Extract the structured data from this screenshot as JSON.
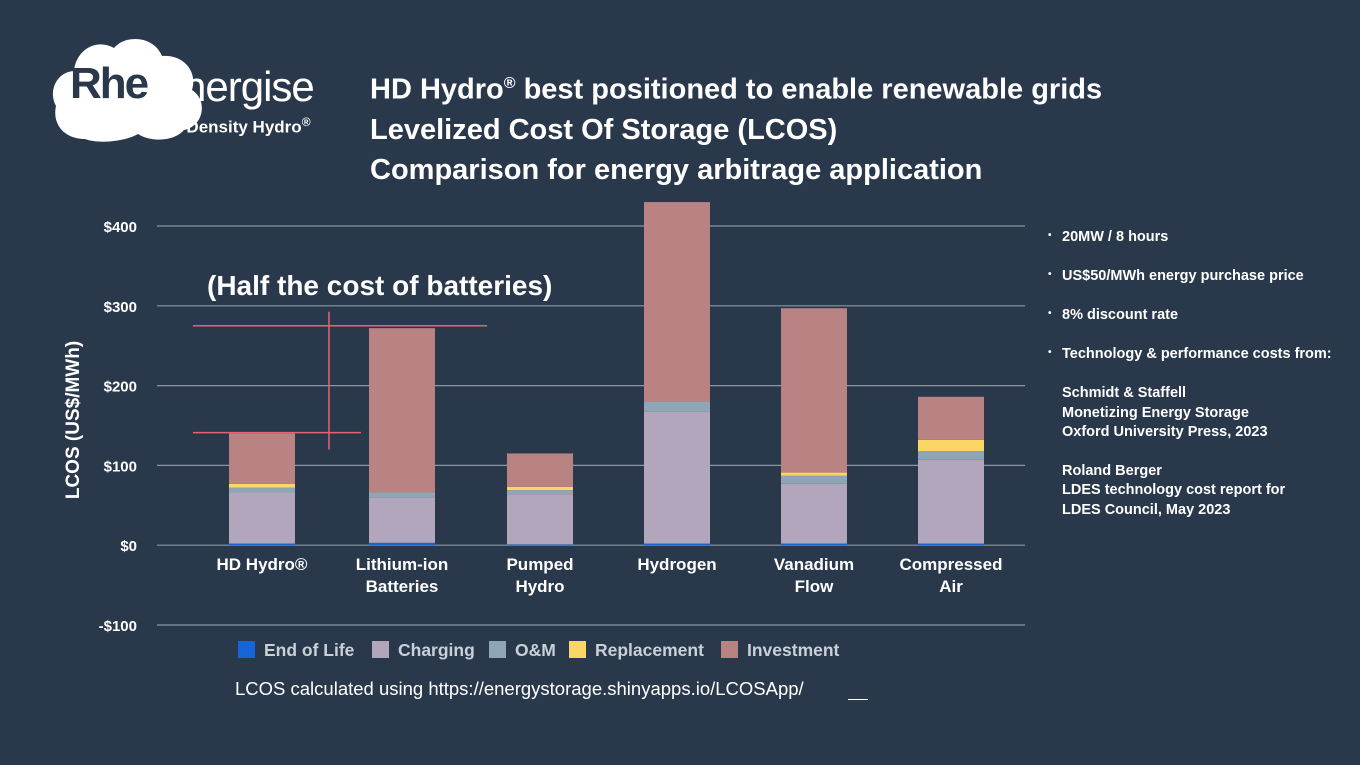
{
  "logo": {
    "brand_rhe": "Rhe",
    "brand_energise": "Energise",
    "tagline": "High-Density Hydro",
    "tagline_mark": "®"
  },
  "title": {
    "line1": "HD Hydro",
    "line1_mark": "®",
    "line1_rest": " best positioned to enable renewable grids",
    "line2": "Levelized Cost Of Storage  (LCOS)",
    "line3": "Comparison for energy arbitrage  application"
  },
  "notes": {
    "bullets": [
      "20MW / 8 hours",
      "US$50/MWh energy purchase price",
      "8% discount rate",
      "Technology & performance costs from:"
    ],
    "references": [
      [
        "Schmidt & Staffell",
        "Monetizing Energy Storage",
        "Oxford University Press, 2023"
      ],
      [
        "Roland Berger",
        "LDES technology cost report for",
        "LDES Council, May 2023"
      ]
    ]
  },
  "footer": {
    "text": "LCOS calculated using https://energystorage.shinyapps.io/LCOSApp/"
  },
  "colors": {
    "background": "#29394b",
    "end_of_life": "#1565d8",
    "charging": "#b2a6bd",
    "om": "#8fa6b6",
    "replacement": "#fbd666",
    "investment": "#b88382",
    "gridline": "#8c96a2",
    "annotation": "#e8636e"
  },
  "chart_data": {
    "type": "bar",
    "stacked": true,
    "title": "",
    "ylabel": "LCOS (US$/MWh)",
    "xlabel": "",
    "ylim": [
      -100,
      400
    ],
    "ytick_values": [
      -100,
      0,
      100,
      200,
      300,
      400
    ],
    "ytick_labels": [
      "-$100",
      "$0",
      "$100",
      "$200",
      "$300",
      "$400"
    ],
    "categories": [
      [
        "HD Hydro®"
      ],
      [
        "Lithium-ion",
        "Batteries"
      ],
      [
        "Pumped",
        "Hydro"
      ],
      [
        "Hydrogen"
      ],
      [
        "Vanadium",
        "Flow"
      ],
      [
        "Compressed",
        "Air"
      ]
    ],
    "series": [
      {
        "name": "End of Life",
        "color_key": "end_of_life",
        "values": [
          2,
          3,
          1,
          2,
          2,
          2
        ]
      },
      {
        "name": "Charging",
        "color_key": "charging",
        "values": [
          64,
          57,
          63,
          165,
          75,
          105
        ]
      },
      {
        "name": "O&M",
        "color_key": "om",
        "values": [
          6,
          6,
          5,
          13,
          10,
          11
        ]
      },
      {
        "name": "Replacement",
        "color_key": "replacement",
        "values": [
          5,
          0,
          4,
          0,
          4,
          14
        ]
      },
      {
        "name": "Investment",
        "color_key": "investment",
        "values": [
          63,
          206,
          42,
          250,
          206,
          54
        ]
      }
    ],
    "legend": {
      "position": "bottom",
      "labels": [
        "End of Life",
        "Charging",
        "O&M",
        "Replacement",
        "Investment"
      ]
    },
    "annotation": {
      "text": "(Half the cost of batteries)",
      "upper_level": 275,
      "lower_level": 141
    },
    "grid": true
  }
}
